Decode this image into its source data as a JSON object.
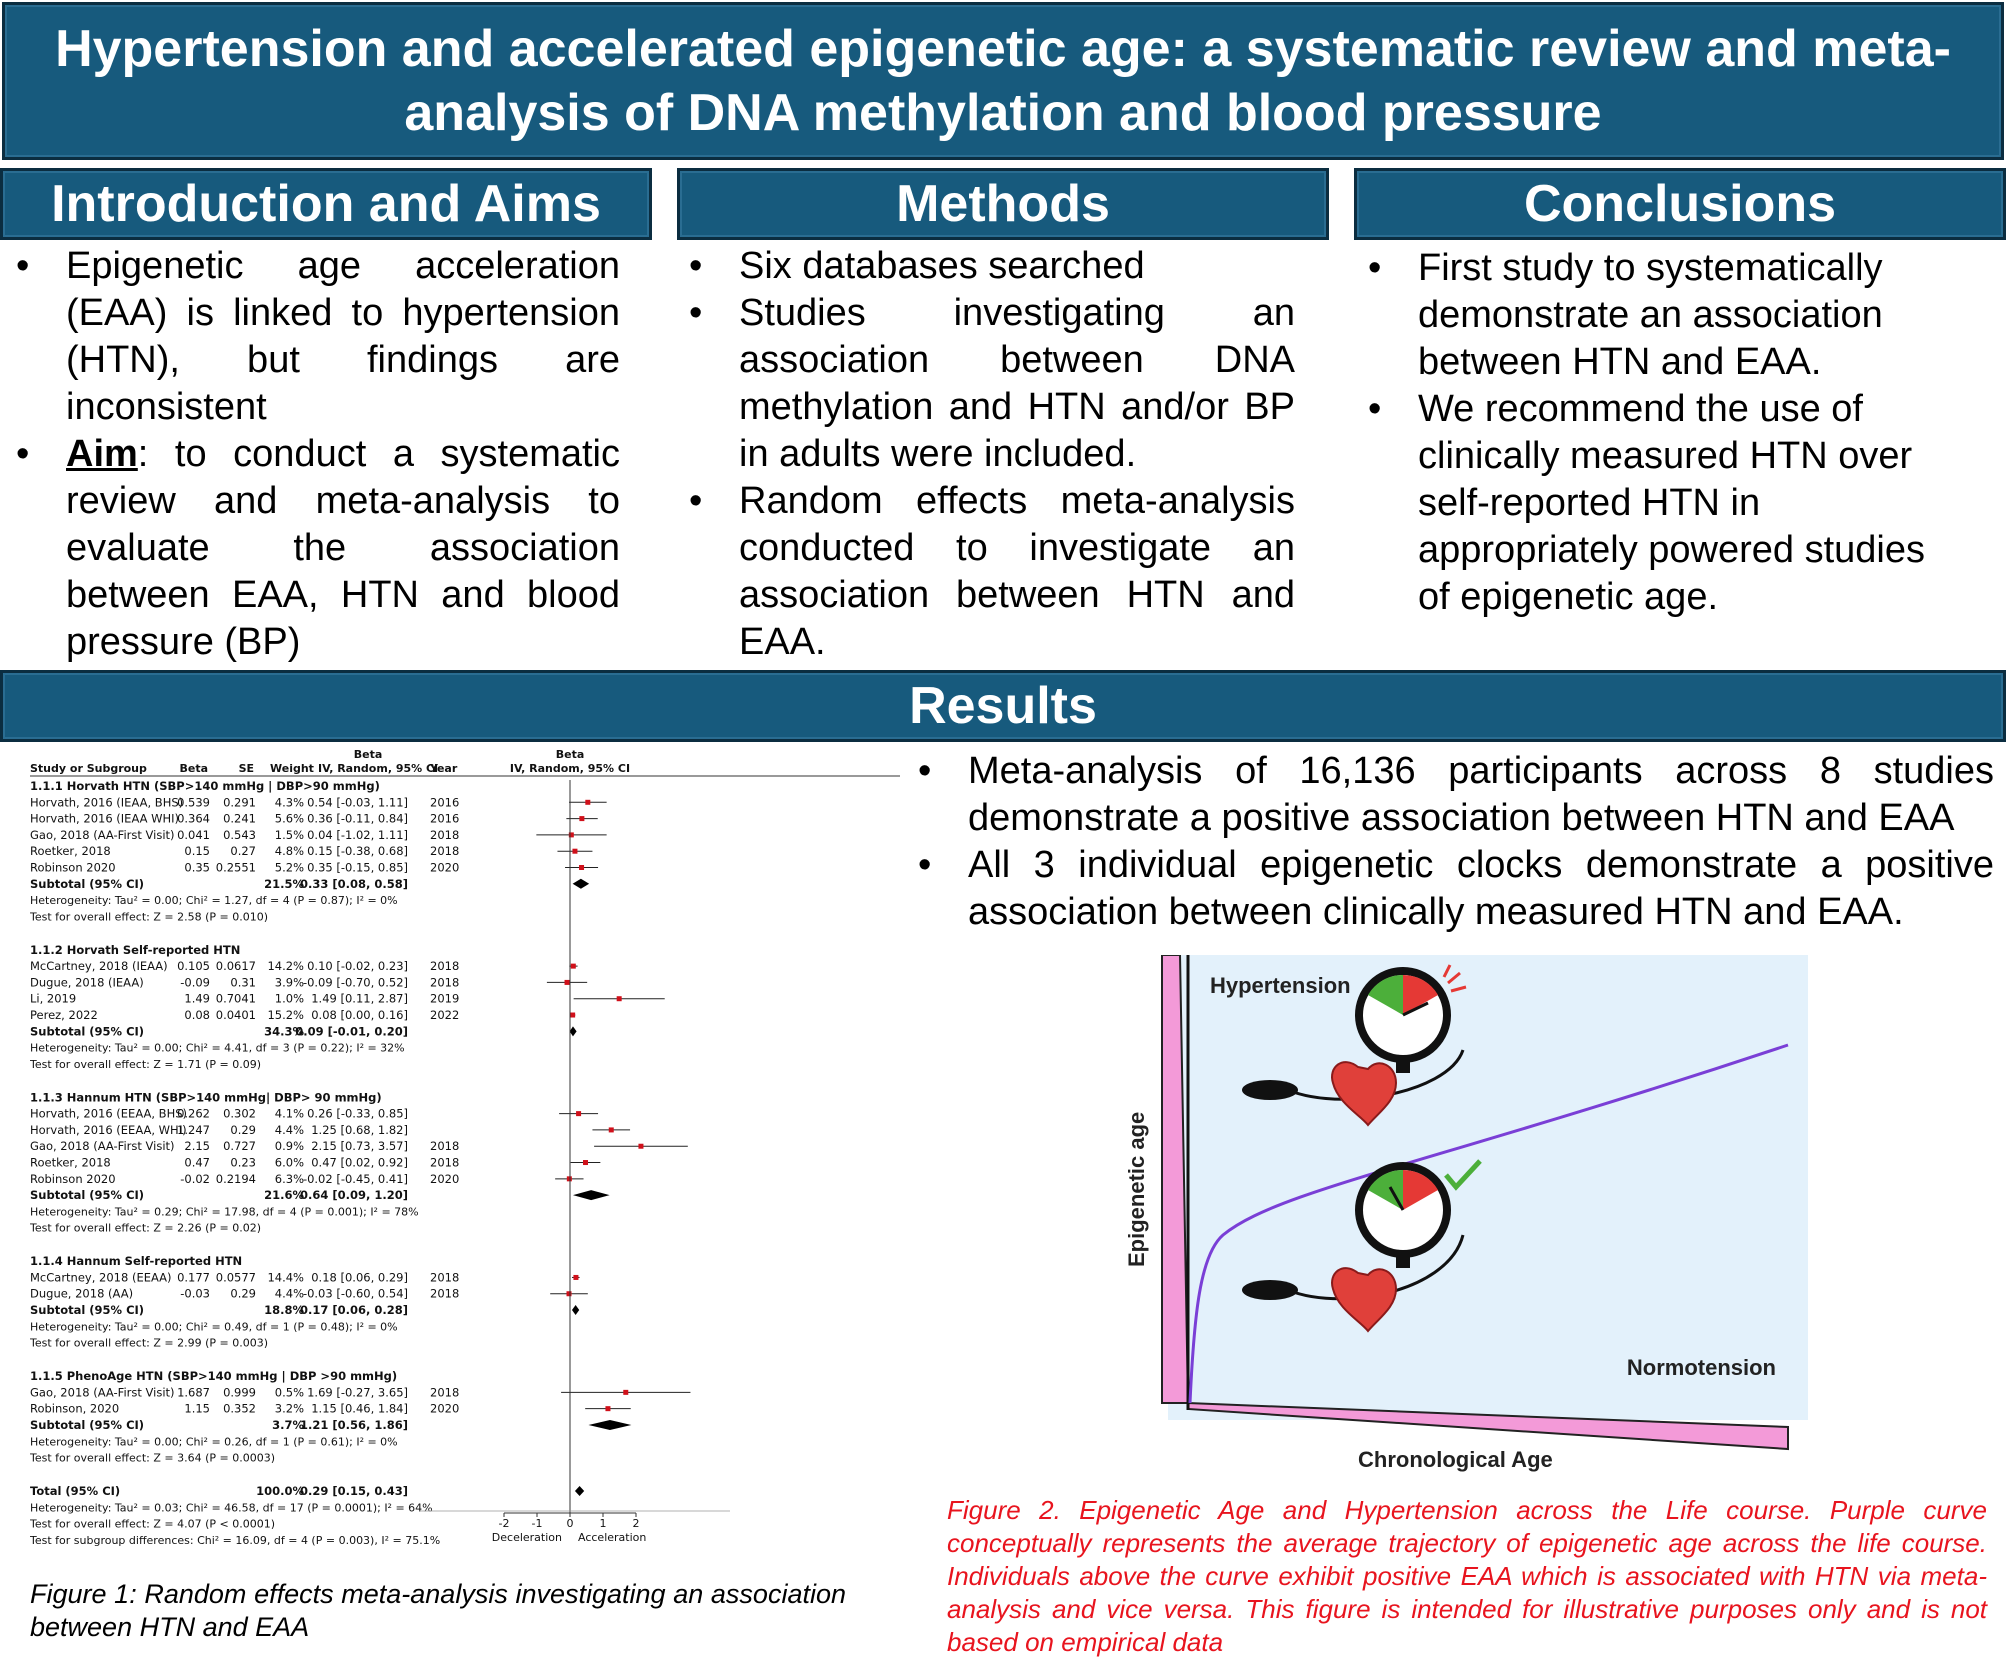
{
  "title": "Hypertension and accelerated epigenetic age: a systematic review and meta-analysis of DNA methylation and blood pressure",
  "sections": {
    "intro": "Introduction and Aims",
    "methods": "Methods",
    "conclusions": "Conclusions",
    "results": "Results"
  },
  "bullet": "•",
  "intro": {
    "item1": "Epigenetic age acceleration (EAA) is linked to hypertension (HTN), but findings are inconsistent",
    "aim_label": "Aim",
    "aim_text": ": to conduct a systematic review and meta-analysis to evaluate the association between EAA, HTN and blood pressure (BP)"
  },
  "methods": {
    "items": [
      "Six databases searched",
      "Studies investigating an association between DNA methylation and HTN and/or BP in adults were included.",
      "Random effects meta-analysis conducted to investigate an association between HTN and EAA."
    ]
  },
  "conclusions": {
    "items": [
      "First study to systematically demonstrate an association between HTN and EAA.",
      "We recommend the use of clinically measured HTN over self-reported HTN in appropriately powered studies of epigenetic age."
    ]
  },
  "results": {
    "items": [
      "Meta-analysis of 16,136 participants across 8 studies demonstrate a positive association between HTN and EAA",
      "All 3 individual epigenetic clocks demonstrate a positive association between clinically measured HTN and EAA."
    ]
  },
  "figure1_caption": "Figure 1: Random effects meta-analysis investigating an association between HTN and EAA",
  "figure2_caption": "Figure 2. Epigenetic Age and Hypertension across the Life course.  Purple curve conceptually represents the average trajectory of epigenetic age across the life course. Individuals above the curve exhibit positive EAA which is associated with HTN via meta-analysis and vice versa. This figure is intended for illustrative purposes only and is not based on empirical data",
  "figure2": {
    "label_top": "Hypertension",
    "label_bottom": "Normotension",
    "xlabel": "Chronological Age",
    "ylabel": "Epigenetic age"
  },
  "forest": {
    "header_beta": "Beta",
    "col_study": "Study or Subgroup",
    "col_beta": "Beta",
    "col_se": "SE",
    "col_weight": "Weight",
    "col_ci": "IV, Random, 95% CI",
    "col_year": "Year",
    "plot_header": "IV, Random, 95% CI",
    "axis_ticks": [
      "-2",
      "-1",
      "0",
      "1",
      "2"
    ],
    "axis_left": "Deceleration",
    "axis_right": "Acceleration",
    "groups": [
      {
        "title": "1.1.1 Horvath HTN (SBP>140 mmHg | DBP>90 mmHg)",
        "rows": [
          {
            "study": "Horvath, 2016 (IEAA, BHS)",
            "beta": "0.539",
            "se": "0.291",
            "weight": "4.3%",
            "ci": "0.54 [-0.03, 1.11]",
            "year": "2016",
            "est": 0.54,
            "lo": -0.03,
            "hi": 1.11
          },
          {
            "study": "Horvath, 2016 (IEAA WHI)",
            "beta": "0.364",
            "se": "0.241",
            "weight": "5.6%",
            "ci": "0.36 [-0.11, 0.84]",
            "year": "2016",
            "est": 0.36,
            "lo": -0.11,
            "hi": 0.84
          },
          {
            "study": "Gao, 2018 (AA-First Visit)",
            "beta": "0.041",
            "se": "0.543",
            "weight": "1.5%",
            "ci": "0.04 [-1.02, 1.11]",
            "year": "2018",
            "est": 0.04,
            "lo": -1.02,
            "hi": 1.11
          },
          {
            "study": "Roetker, 2018",
            "beta": "0.15",
            "se": "0.27",
            "weight": "4.8%",
            "ci": "0.15 [-0.38, 0.68]",
            "year": "2018",
            "est": 0.15,
            "lo": -0.38,
            "hi": 0.68
          },
          {
            "study": "Robinson 2020",
            "beta": "0.35",
            "se": "0.2551",
            "weight": "5.2%",
            "ci": "0.35 [-0.15, 0.85]",
            "year": "2020",
            "est": 0.35,
            "lo": -0.15,
            "hi": 0.85
          }
        ],
        "subtotal": {
          "label": "Subtotal (95% CI)",
          "weight": "21.5%",
          "ci": "0.33 [0.08, 0.58]",
          "est": 0.33,
          "lo": 0.08,
          "hi": 0.58
        },
        "het": "Heterogeneity: Tau² = 0.00; Chi² = 1.27, df = 4 (P = 0.87); I² = 0%",
        "test": "Test for overall effect: Z = 2.58 (P = 0.010)"
      },
      {
        "title": "1.1.2 Horvath Self-reported HTN",
        "rows": [
          {
            "study": "McCartney, 2018 (IEAA)",
            "beta": "0.105",
            "se": "0.0617",
            "weight": "14.2%",
            "ci": "0.10 [-0.02, 0.23]",
            "year": "2018",
            "est": 0.1,
            "lo": -0.02,
            "hi": 0.23
          },
          {
            "study": "Dugue, 2018 (IEAA)",
            "beta": "-0.09",
            "se": "0.31",
            "weight": "3.9%",
            "ci": "-0.09 [-0.70, 0.52]",
            "year": "2018",
            "est": -0.09,
            "lo": -0.7,
            "hi": 0.52
          },
          {
            "study": "Li, 2019",
            "beta": "1.49",
            "se": "0.7041",
            "weight": "1.0%",
            "ci": "1.49 [0.11, 2.87]",
            "year": "2019",
            "est": 1.49,
            "lo": 0.11,
            "hi": 2.87
          },
          {
            "study": "Perez, 2022",
            "beta": "0.08",
            "se": "0.0401",
            "weight": "15.2%",
            "ci": "0.08 [0.00, 0.16]",
            "year": "2022",
            "est": 0.08,
            "lo": 0.0,
            "hi": 0.16
          }
        ],
        "subtotal": {
          "label": "Subtotal (95% CI)",
          "weight": "34.3%",
          "ci": "0.09 [-0.01, 0.20]",
          "est": 0.09,
          "lo": -0.01,
          "hi": 0.2
        },
        "het": "Heterogeneity: Tau² = 0.00; Chi² = 4.41, df = 3 (P = 0.22); I² = 32%",
        "test": "Test for overall effect: Z = 1.71 (P = 0.09)"
      },
      {
        "title": "1.1.3 Hannum HTN (SBP>140 mmHg| DBP> 90 mmHg)",
        "rows": [
          {
            "study": "Horvath, 2016 (EEAA, BHS)",
            "beta": "0.262",
            "se": "0.302",
            "weight": "4.1%",
            "ci": "0.26 [-0.33, 0.85]",
            "year": "",
            "est": 0.26,
            "lo": -0.33,
            "hi": 0.85
          },
          {
            "study": "Horvath, 2016 (EEAA, WHI)",
            "beta": "1.247",
            "se": "0.29",
            "weight": "4.4%",
            "ci": "1.25 [0.68, 1.82]",
            "year": "",
            "est": 1.25,
            "lo": 0.68,
            "hi": 1.82
          },
          {
            "study": "Gao, 2018 (AA-First Visit)",
            "beta": "2.15",
            "se": "0.727",
            "weight": "0.9%",
            "ci": "2.15 [0.73, 3.57]",
            "year": "2018",
            "est": 2.15,
            "lo": 0.73,
            "hi": 3.57
          },
          {
            "study": "Roetker, 2018",
            "beta": "0.47",
            "se": "0.23",
            "weight": "6.0%",
            "ci": "0.47 [0.02, 0.92]",
            "year": "2018",
            "est": 0.47,
            "lo": 0.02,
            "hi": 0.92
          },
          {
            "study": "Robinson 2020",
            "beta": "-0.02",
            "se": "0.2194",
            "weight": "6.3%",
            "ci": "-0.02 [-0.45, 0.41]",
            "year": "2020",
            "est": -0.02,
            "lo": -0.45,
            "hi": 0.41
          }
        ],
        "subtotal": {
          "label": "Subtotal (95% CI)",
          "weight": "21.6%",
          "ci": "0.64 [0.09, 1.20]",
          "est": 0.64,
          "lo": 0.09,
          "hi": 1.2
        },
        "het": "Heterogeneity: Tau² = 0.29; Chi² = 17.98, df = 4 (P = 0.001); I² = 78%",
        "test": "Test for overall effect: Z = 2.26 (P = 0.02)"
      },
      {
        "title": "1.1.4 Hannum Self-reported HTN",
        "rows": [
          {
            "study": "McCartney, 2018 (EEAA)",
            "beta": "0.177",
            "se": "0.0577",
            "weight": "14.4%",
            "ci": "0.18 [0.06, 0.29]",
            "year": "2018",
            "est": 0.18,
            "lo": 0.06,
            "hi": 0.29
          },
          {
            "study": "Dugue, 2018 (AA)",
            "beta": "-0.03",
            "se": "0.29",
            "weight": "4.4%",
            "ci": "-0.03 [-0.60, 0.54]",
            "year": "2018",
            "est": -0.03,
            "lo": -0.6,
            "hi": 0.54
          }
        ],
        "subtotal": {
          "label": "Subtotal (95% CI)",
          "weight": "18.8%",
          "ci": "0.17 [0.06, 0.28]",
          "est": 0.17,
          "lo": 0.06,
          "hi": 0.28
        },
        "het": "Heterogeneity: Tau² = 0.00; Chi² = 0.49, df = 1 (P = 0.48); I² = 0%",
        "test": "Test for overall effect: Z = 2.99 (P = 0.003)"
      },
      {
        "title": "1.1.5 PhenoAge HTN (SBP>140 mmHg | DBP >90 mmHg)",
        "rows": [
          {
            "study": "Gao, 2018 (AA-First Visit)",
            "beta": "1.687",
            "se": "0.999",
            "weight": "0.5%",
            "ci": "1.69 [-0.27, 3.65]",
            "year": "2018",
            "est": 1.69,
            "lo": -0.27,
            "hi": 3.65
          },
          {
            "study": "Robinson, 2020",
            "beta": "1.15",
            "se": "0.352",
            "weight": "3.2%",
            "ci": "1.15 [0.46, 1.84]",
            "year": "2020",
            "est": 1.15,
            "lo": 0.46,
            "hi": 1.84
          }
        ],
        "subtotal": {
          "label": "Subtotal (95% CI)",
          "weight": "3.7%",
          "ci": "1.21 [0.56, 1.86]",
          "est": 1.21,
          "lo": 0.56,
          "hi": 1.86
        },
        "het": "Heterogeneity: Tau² = 0.00; Chi² = 0.26, df = 1 (P = 0.61); I² = 0%",
        "test": "Test for overall effect: Z = 3.64 (P = 0.0003)"
      }
    ],
    "total": {
      "label": "Total (95% CI)",
      "weight": "100.0%",
      "ci": "0.29 [0.15, 0.43]",
      "est": 0.29,
      "lo": 0.15,
      "hi": 0.43
    },
    "total_het": "Heterogeneity: Tau² = 0.03; Chi² = 46.58, df = 17 (P = 0.0001); I² = 64%",
    "total_test": "Test for overall effect: Z = 4.07 (P < 0.0001)",
    "subgroup_test": "Test for subgroup differences: Chi² = 16.09, df = 4 (P = 0.003), I² = 75.1%"
  },
  "colors": {
    "header_bg": "#175a7d",
    "caption_red": "#e8141e",
    "curve_purple": "#7a3fd6",
    "axis_pink": "#f39ad8",
    "figure_bg": "#e3f1fb"
  }
}
